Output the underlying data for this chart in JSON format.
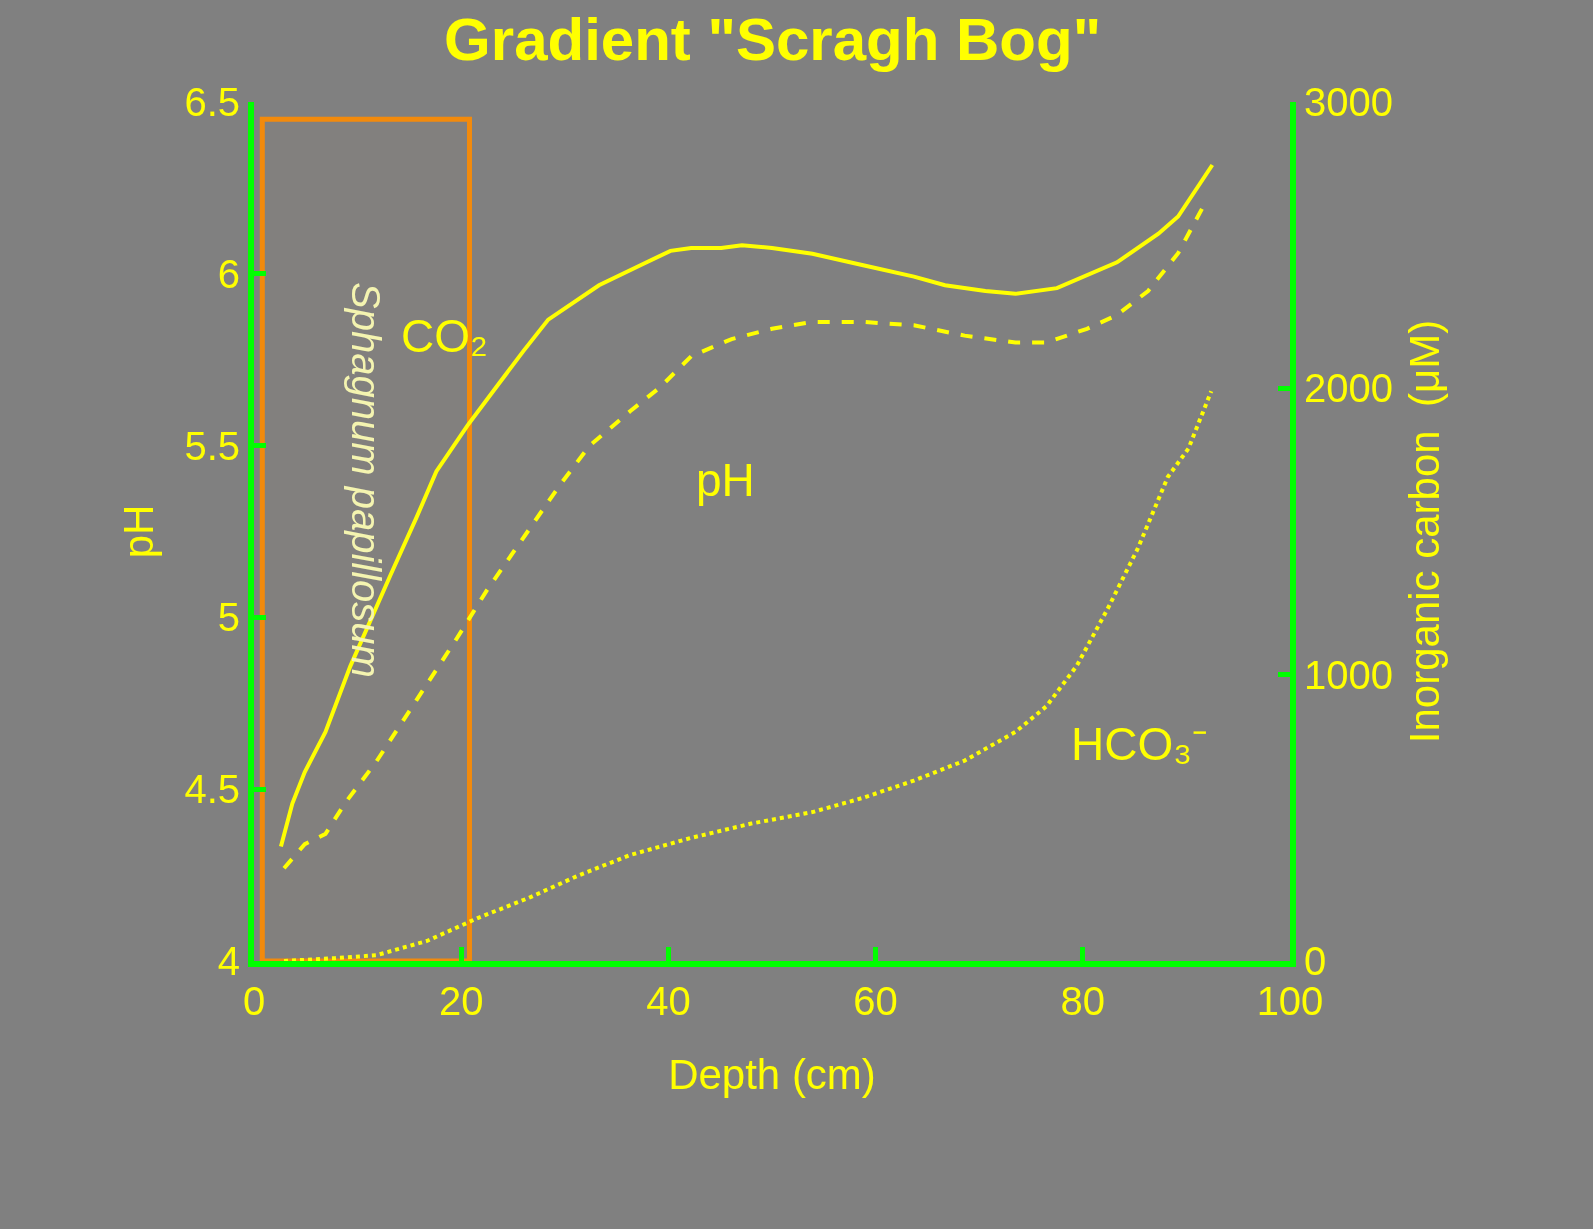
{
  "chart_data": {
    "type": "line",
    "title": "Gradient \"Scragh Bog\"",
    "xlabel": "Depth (cm)",
    "ylabel": "pH",
    "y2label": "Inorganic carbon  (μM)",
    "xlim": [
      0,
      100
    ],
    "xticks": [
      0,
      20,
      40,
      60,
      80,
      100
    ],
    "ylim": [
      4,
      6.5
    ],
    "yticks": [
      4,
      4.5,
      5,
      5.5,
      6,
      6.5
    ],
    "y2lim": [
      0,
      3000
    ],
    "y2ticks": [
      0,
      1000,
      2000,
      3000
    ],
    "grid": false,
    "marker": "none",
    "series": [
      {
        "color": "#ffff00",
        "axis": "y2",
        "line_style": "solid",
        "x": [
          2.6,
          3.7,
          4.9,
          6.9,
          9.3,
          13.2,
          15.7,
          17.6,
          20.6,
          23.5,
          26.0,
          28.4,
          33.3,
          37.3,
          40.2,
          42.2,
          45.1,
          47.1,
          50.0,
          53.9,
          58.8,
          63.7,
          66.7,
          70.6,
          73.5,
          77.5,
          83.3,
          87.3,
          89.2,
          92.5
        ],
        "values": [
          400,
          550,
          660,
          800,
          1030,
          1350,
          1550,
          1710,
          1870,
          2010,
          2130,
          2240,
          2360,
          2430,
          2480,
          2490,
          2490,
          2500,
          2490,
          2470,
          2430,
          2390,
          2360,
          2340,
          2330,
          2350,
          2440,
          2540,
          2600,
          2780
        ]
      },
      {
        "color": "#ffff00",
        "axis": "y",
        "line_style": "dashed",
        "x": [
          2.9,
          4.9,
          6.9,
          8.8,
          11.8,
          15.7,
          19.6,
          22.5,
          25.5,
          29.4,
          32.4,
          36.3,
          39.2,
          42.2,
          46.1,
          50.0,
          53.9,
          58.8,
          63.7,
          68.6,
          73.5,
          76.5,
          80.4,
          83.3,
          86.3,
          89.2,
          91.7
        ],
        "values": [
          4.27,
          4.34,
          4.37,
          4.46,
          4.58,
          4.76,
          4.94,
          5.08,
          5.21,
          5.38,
          5.5,
          5.6,
          5.67,
          5.76,
          5.81,
          5.84,
          5.86,
          5.86,
          5.85,
          5.82,
          5.8,
          5.8,
          5.84,
          5.88,
          5.95,
          6.06,
          6.2
        ]
      },
      {
        "color": "#ffff00",
        "axis": "y2",
        "line_style": "dotted",
        "x": [
          2.9,
          7.8,
          11.8,
          16.7,
          21.6,
          26.5,
          31.4,
          36.3,
          42.2,
          48.0,
          53.9,
          58.8,
          63.7,
          68.6,
          73.5,
          76.5,
          79.4,
          82.4,
          85.3,
          88.2,
          90.2,
          92.4
        ],
        "values": [
          0,
          10,
          20,
          70,
          150,
          220,
          300,
          370,
          430,
          480,
          520,
          570,
          630,
          700,
          800,
          890,
          1030,
          1230,
          1440,
          1690,
          1790,
          1990
        ]
      }
    ],
    "annotations": [
      "CO₂",
      "pH",
      "HCO₃⁻"
    ],
    "bands": [
      {
        "axis": "x",
        "from": 0.8,
        "to": 20.8,
        "label": "Sphagnum papillosum",
        "color": "#ff8c00"
      }
    ]
  }
}
